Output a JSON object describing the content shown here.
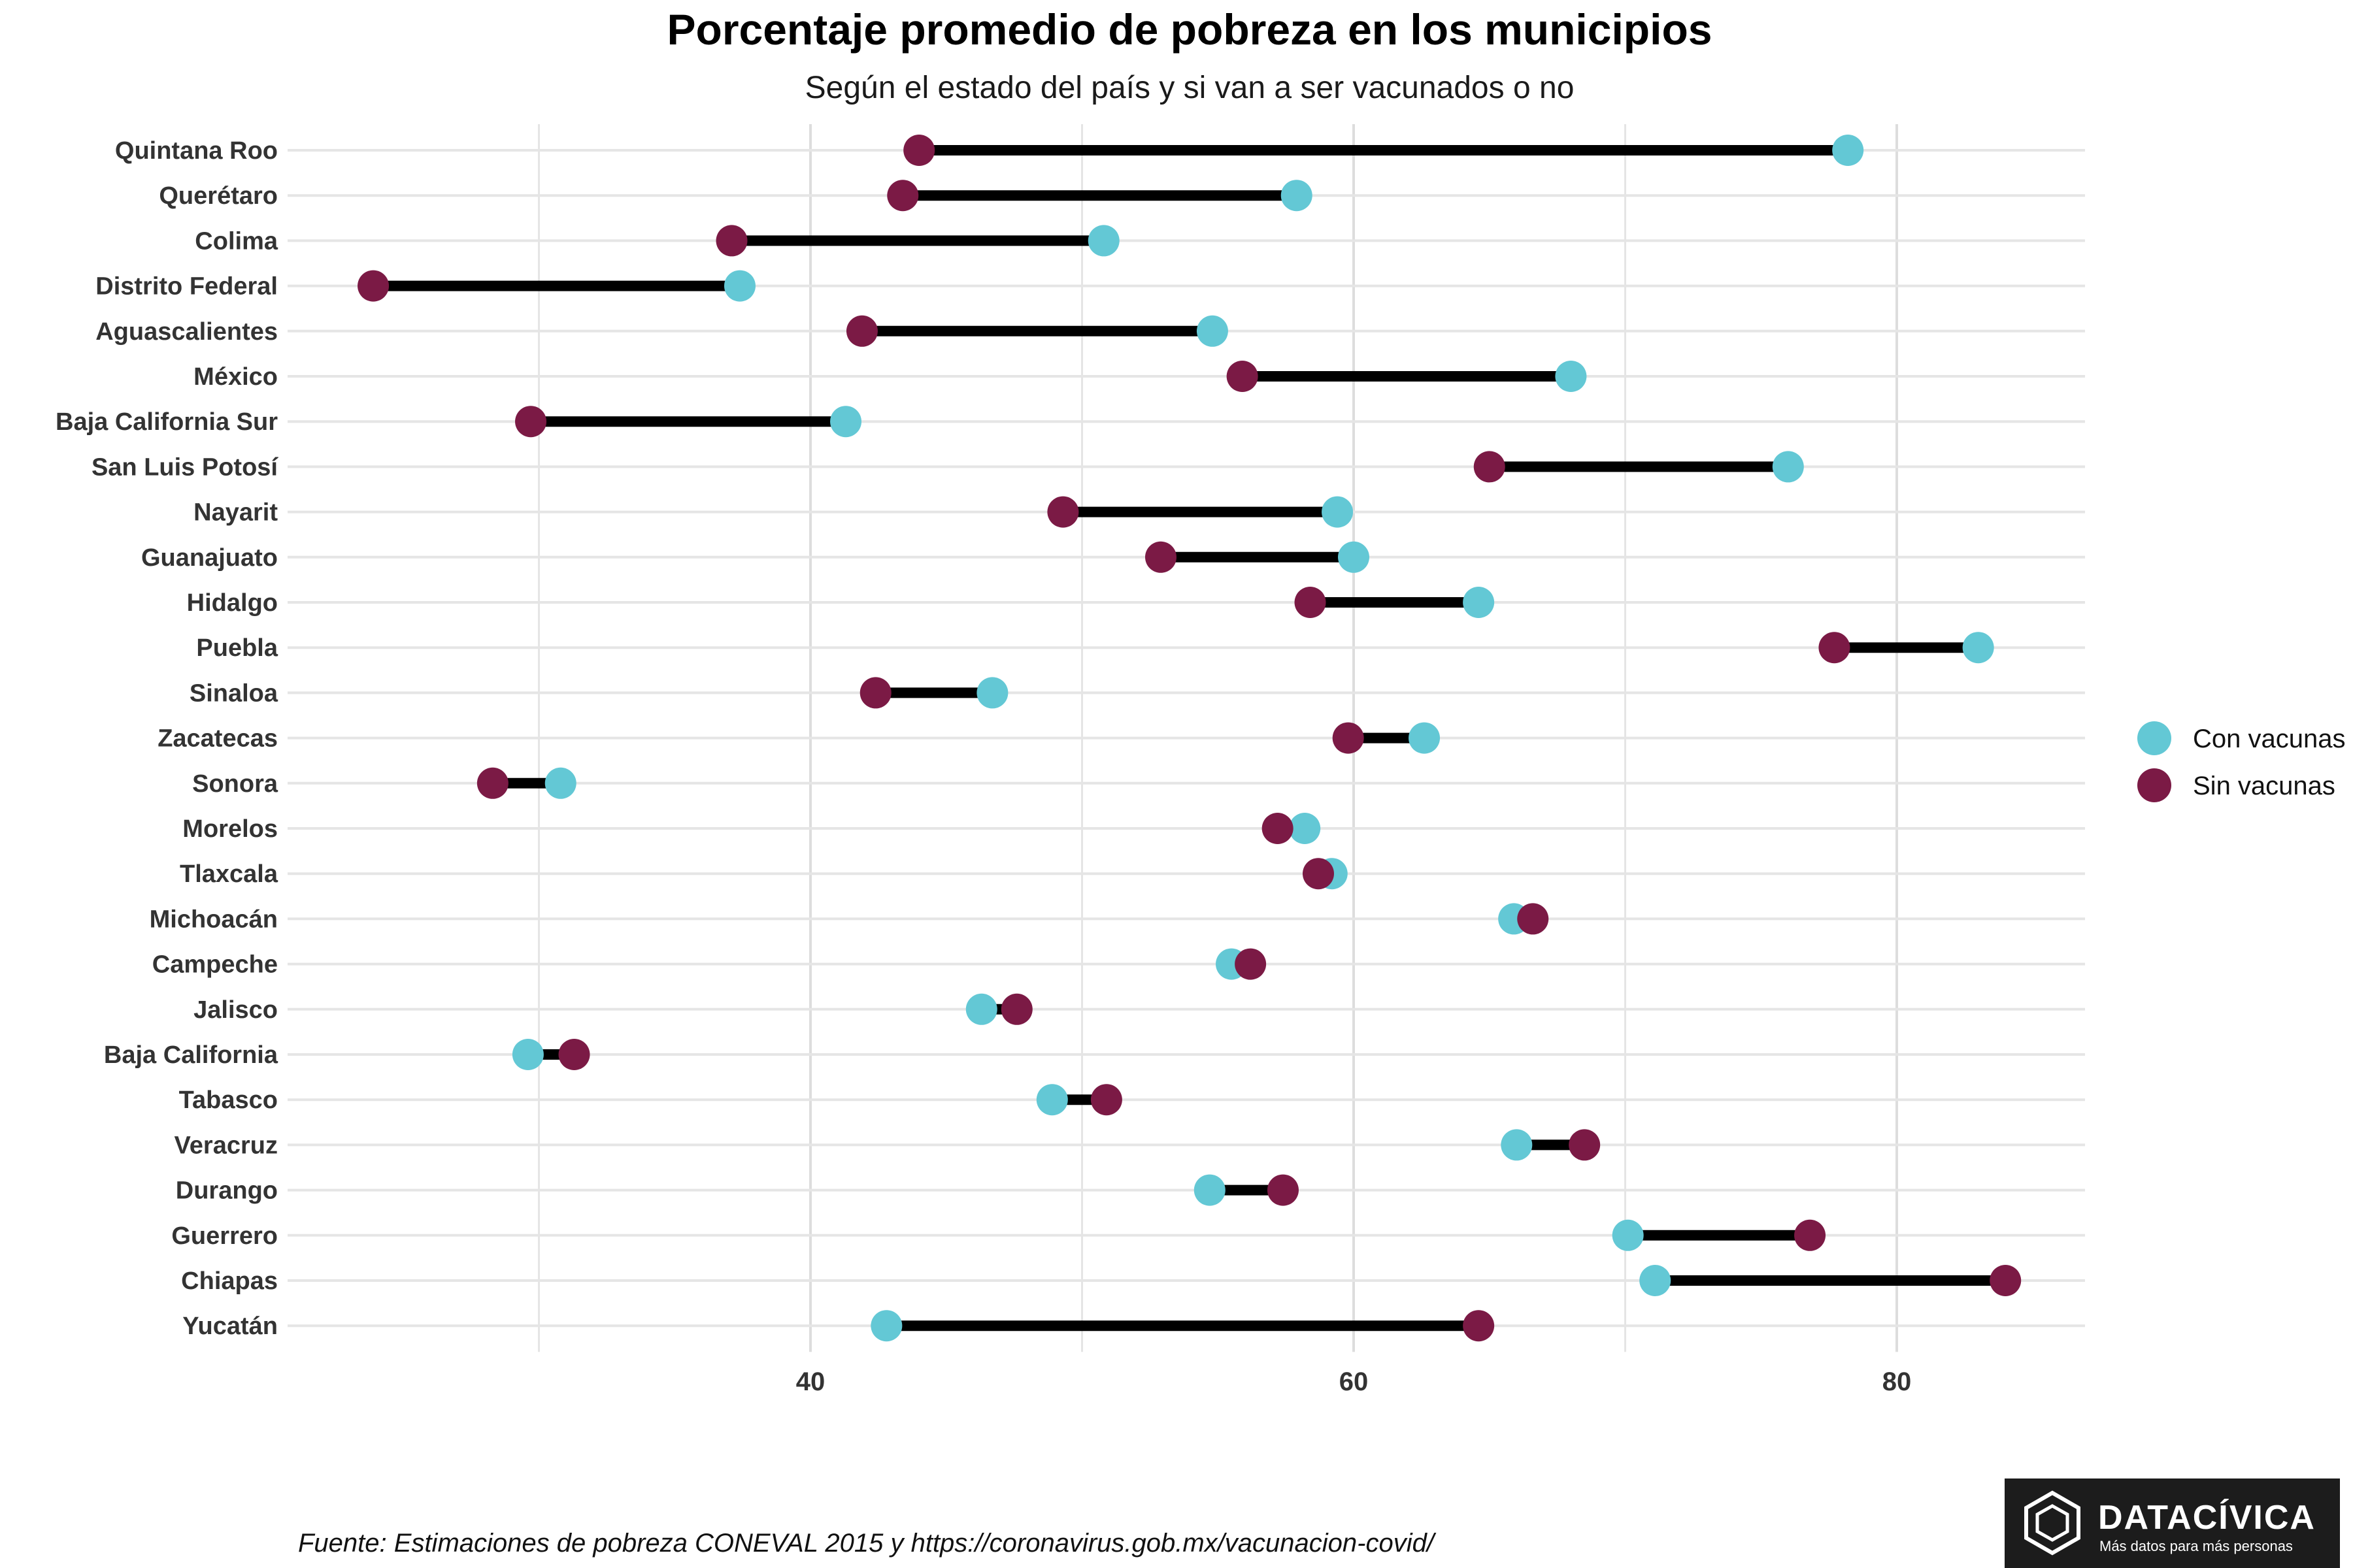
{
  "title": "Porcentaje promedio de pobreza en los municipios",
  "subtitle": "Según el estado del país y si van a ser vacunados o no",
  "caption": "Fuente: Estimaciones de pobreza CONEVAL 2015 y https://coronavirus.gob.mx/vacunacion-covid/",
  "logo": {
    "name": "DATACÍVICA",
    "tagline": "Más datos para más personas"
  },
  "colors": {
    "con": "#63c8d5",
    "sin": "#7b1a45",
    "segment": "#000000",
    "grid": "#e5e5e5"
  },
  "chart_data": {
    "type": "scatter",
    "subtype": "dumbbell",
    "xlim": [
      22,
      87
    ],
    "xticks": [
      40,
      60,
      80
    ],
    "minor_gridlines": [
      30,
      50,
      70
    ],
    "grid": true,
    "legend_position": "right",
    "categories": [
      "Quintana Roo",
      "Querétaro",
      "Colima",
      "Distrito Federal",
      "Aguascalientes",
      "México",
      "Baja California Sur",
      "San Luis Potosí",
      "Nayarit",
      "Guanajuato",
      "Hidalgo",
      "Puebla",
      "Sinaloa",
      "Zacatecas",
      "Sonora",
      "Morelos",
      "Tlaxcala",
      "Michoacán",
      "Campeche",
      "Jalisco",
      "Baja California",
      "Tabasco",
      "Veracruz",
      "Durango",
      "Guerrero",
      "Chiapas",
      "Yucatán"
    ],
    "series": [
      {
        "name": "Con vacunas",
        "values": [
          78.2,
          57.9,
          50.8,
          37.4,
          54.8,
          68.0,
          41.3,
          76.0,
          59.4,
          60.0,
          64.6,
          83.0,
          46.7,
          62.6,
          30.8,
          58.2,
          59.2,
          65.9,
          55.5,
          46.3,
          29.6,
          48.9,
          66.0,
          54.7,
          70.1,
          71.1,
          42.8
        ]
      },
      {
        "name": "Sin vacunas",
        "values": [
          44.0,
          43.4,
          37.1,
          23.9,
          41.9,
          55.9,
          29.7,
          65.0,
          49.3,
          52.9,
          58.4,
          77.7,
          42.4,
          59.8,
          28.3,
          57.2,
          58.7,
          66.6,
          56.2,
          47.6,
          31.3,
          50.9,
          68.5,
          57.4,
          76.8,
          84.0,
          64.6
        ]
      }
    ]
  }
}
